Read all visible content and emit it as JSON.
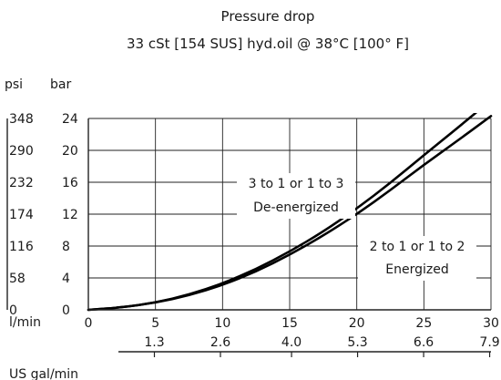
{
  "chart_data": {
    "type": "line",
    "title": "Pressure drop",
    "subtitle": "33 cSt [154 SUS] hyd.oil @ 38°C [100° F]",
    "xlabel": "l/min",
    "ylabel_left": "psi",
    "ylabel_right": "bar",
    "x_secondary_label": "US gal/min",
    "xlim": [
      0,
      30
    ],
    "ylim": [
      0,
      24
    ],
    "x_ticks": [
      "0",
      "5",
      "10",
      "15",
      "20",
      "25",
      "30"
    ],
    "y_bar_ticks": [
      "0",
      "4",
      "8",
      "12",
      "16",
      "20",
      "24"
    ],
    "y_psi_ticks": [
      "0",
      "58",
      "116",
      "174",
      "232",
      "290",
      "348"
    ],
    "x_secondary_ticks": [
      "1.3",
      "2.6",
      "4.0",
      "5.3",
      "6.6",
      "7.9"
    ],
    "grid": true,
    "series": [
      {
        "name": "3 to 1 or 1 to 3 De-energized",
        "x": [
          0,
          2.5,
          5,
          7.5,
          10,
          12.5,
          15,
          17.5,
          20,
          22.5,
          25,
          27.5,
          30
        ],
        "y": [
          0,
          0.3,
          0.9,
          1.9,
          3.3,
          5.1,
          7.3,
          9.8,
          12.7,
          15.9,
          19.4,
          22.8,
          26.3
        ]
      },
      {
        "name": "2 to 1 or 1 to 2 Energized",
        "x": [
          0,
          2.5,
          5,
          7.5,
          10,
          12.5,
          15,
          17.5,
          20,
          22.5,
          25,
          27.5,
          30
        ],
        "y": [
          0,
          0.3,
          0.9,
          1.8,
          3.1,
          4.8,
          6.9,
          9.3,
          12.0,
          15.0,
          18.2,
          21.2,
          24.3
        ]
      }
    ],
    "annotations": [
      {
        "series": 0,
        "lines": [
          "3 to 1 or 1 to 3",
          "De-energized"
        ]
      },
      {
        "series": 1,
        "lines": [
          "2 to 1 or 1 to 2",
          "Energized"
        ]
      }
    ]
  }
}
